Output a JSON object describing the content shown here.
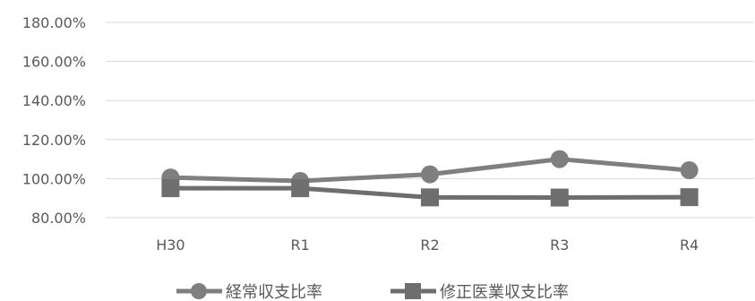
{
  "chart_data": {
    "type": "line",
    "title": "",
    "xlabel": "",
    "ylabel": "",
    "categories": [
      "H30",
      "R1",
      "R2",
      "R3",
      "R4"
    ],
    "ylim": [
      0.8,
      1.8
    ],
    "y_ticks": [
      "180.00%",
      "160.00%",
      "140.00%",
      "120.00%",
      "100.00%",
      "80.00%"
    ],
    "y_tick_values": [
      1.8,
      1.6,
      1.4,
      1.2,
      1.0,
      0.8
    ],
    "grid": true,
    "legend_position": "bottom",
    "series": [
      {
        "name": "経常収支比率",
        "marker": "circle",
        "color": "#7f7f7f",
        "values": [
          1.006,
          0.988,
          1.022,
          1.1,
          1.043
        ]
      },
      {
        "name": "修正医業収支比率",
        "marker": "square",
        "color": "#6e6e6e",
        "values": [
          0.951,
          0.951,
          0.904,
          0.903,
          0.905
        ]
      }
    ]
  }
}
